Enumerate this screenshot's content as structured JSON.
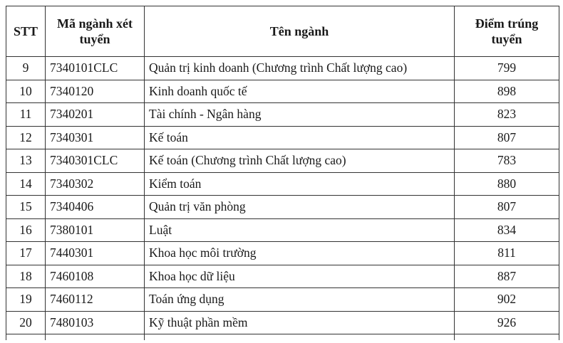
{
  "headers": {
    "stt": "STT",
    "code": "Mã ngành xét tuyển",
    "name": "Tên ngành",
    "score": "Điểm trúng tuyển"
  },
  "rows": [
    {
      "stt": "9",
      "code": "7340101CLC",
      "name": "Quản trị kinh doanh (Chương trình Chất lượng cao)",
      "score": "799"
    },
    {
      "stt": "10",
      "code": "7340120",
      "name": "Kinh doanh quốc tế",
      "score": "898"
    },
    {
      "stt": "11",
      "code": "7340201",
      "name": "Tài chính - Ngân hàng",
      "score": "823"
    },
    {
      "stt": "12",
      "code": "7340301",
      "name": "Kế toán",
      "score": "807"
    },
    {
      "stt": "13",
      "code": "7340301CLC",
      "name": "Kế toán (Chương trình Chất lượng cao)",
      "score": "783"
    },
    {
      "stt": "14",
      "code": "7340302",
      "name": "Kiểm toán",
      "score": "880"
    },
    {
      "stt": "15",
      "code": "7340406",
      "name": "Quản trị văn phòng",
      "score": "807"
    },
    {
      "stt": "16",
      "code": "7380101",
      "name": "Luật",
      "score": "834"
    },
    {
      "stt": "17",
      "code": "7440301",
      "name": "Khoa học môi trường",
      "score": "811"
    },
    {
      "stt": "18",
      "code": "7460108",
      "name": "Khoa học dữ liệu",
      "score": "887"
    },
    {
      "stt": "19",
      "code": "7460112",
      "name": "Toán ứng dụng",
      "score": "902"
    },
    {
      "stt": "20",
      "code": "7480103",
      "name": "Kỹ thuật phần mềm",
      "score": "926"
    }
  ]
}
